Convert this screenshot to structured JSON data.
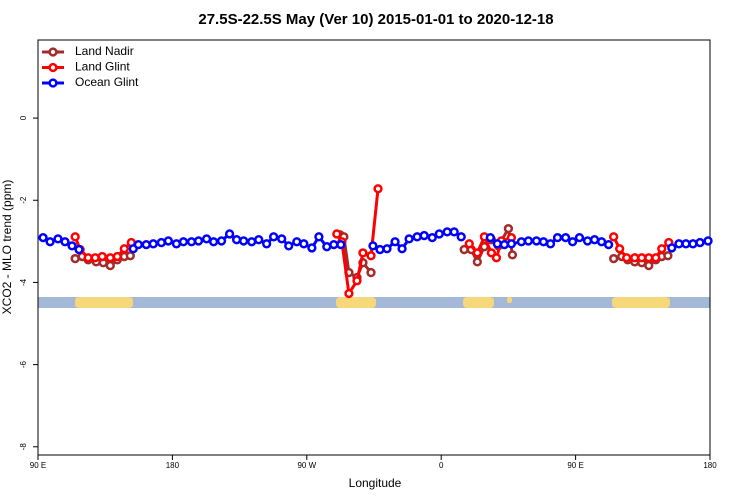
{
  "chart_data": {
    "type": "line",
    "title": "27.5S-22.5S May (Ver 10)   2015-01-01 to 2020-12-18",
    "x_label": "Longitude",
    "y_label": "XCO2 - MLO trend (ppm)",
    "xlim": [
      90,
      540
    ],
    "xticks": [
      {
        "value": 90,
        "label": "90 E"
      },
      {
        "value": 180,
        "label": "180"
      },
      {
        "value": 270,
        "label": "90 W"
      },
      {
        "value": 360,
        "label": "0"
      },
      {
        "value": 450,
        "label": "90 E"
      },
      {
        "value": 540,
        "label": "180"
      }
    ],
    "ylim": [
      -8.2,
      1.9
    ],
    "yticks": [
      0,
      -2,
      -4,
      -6,
      -8
    ],
    "legend": "top-left",
    "series": [
      {
        "name": "Land Nadir",
        "color": "#a52a2a",
        "x": [
          114.9,
          119.6,
          123.6,
          129.0,
          133.7,
          138.4,
          143.1,
          147.8,
          151.8,
          220,
          292.2,
          294.8,
          298.2,
          303.6,
          307.6,
          313.0,
          345,
          375.4,
          380.1,
          384.2,
          388.9,
          393.6,
          398.3,
          405.0,
          407.7,
          440,
          475.5,
          480.9,
          484.9,
          489.6,
          494.3,
          499.0,
          503.7,
          507.7,
          511.8
        ],
        "values": [
          -3.42,
          -3.37,
          -3.45,
          -3.5,
          -3.52,
          -3.59,
          -3.45,
          -3.37,
          -3.35,
          null,
          -2.84,
          -2.89,
          -3.76,
          -3.88,
          -3.52,
          -3.76,
          null,
          -3.2,
          -3.2,
          -3.5,
          -3.13,
          -2.96,
          -3.11,
          -2.69,
          -3.33,
          null,
          -3.42,
          -3.37,
          -3.45,
          -3.5,
          -3.52,
          -3.59,
          -3.45,
          -3.37,
          -3.35
        ]
      },
      {
        "name": "Land Glint",
        "color": "#ff0000",
        "x": [
          114.9,
          118.2,
          123.6,
          128.3,
          133.0,
          138.4,
          143.1,
          147.8,
          152.5,
          220,
          290.1,
          293.5,
          298.2,
          303.6,
          307.6,
          313.0,
          317.7,
          345,
          378.8,
          384.2,
          388.9,
          393.6,
          397.0,
          400.3,
          407.0,
          440,
          475.5,
          479.5,
          484.2,
          489.6,
          494.3,
          499.0,
          503.7,
          507.7,
          512.4
        ],
        "values": [
          -2.89,
          -3.2,
          -3.4,
          -3.4,
          -3.37,
          -3.4,
          -3.37,
          -3.18,
          -3.03,
          null,
          -2.82,
          -3.01,
          -4.27,
          -3.96,
          -3.28,
          -3.35,
          -1.72,
          null,
          -3.06,
          -3.28,
          -2.89,
          -3.28,
          -3.4,
          -2.99,
          -2.91,
          null,
          -2.89,
          -3.18,
          -3.4,
          -3.4,
          -3.4,
          -3.4,
          -3.4,
          -3.18,
          -3.03
        ]
      },
      {
        "name": "Ocean Glint",
        "color": "#0000ff",
        "x": [
          93.4,
          98.1,
          103.4,
          108.1,
          112.8,
          117.5,
          135,
          153.8,
          157.2,
          162.5,
          167.2,
          172.6,
          177.3,
          182.7,
          187.4,
          192.8,
          197.5,
          202.9,
          207.6,
          212.9,
          218.3,
          223.0,
          227.7,
          233.1,
          237.8,
          243.1,
          247.8,
          253.2,
          257.9,
          263.3,
          268.0,
          273.4,
          278.1,
          283.4,
          288.1,
          292.8,
          303,
          314.3,
          319.0,
          323.7,
          329.1,
          333.8,
          338.5,
          343.9,
          348.6,
          354.0,
          358.7,
          364.0,
          368.7,
          373.4,
          383,
          392.9,
          397.6,
          402.3,
          407.0,
          413.7,
          418.4,
          423.8,
          428.5,
          433.2,
          437.9,
          443.3,
          448.0,
          452.6,
          458.0,
          462.7,
          467.4,
          472.1,
          493,
          514.4,
          519.2,
          523.9,
          528.6,
          533.3,
          538.7
        ],
        "values": [
          -2.91,
          -3.01,
          -2.94,
          -3.01,
          -3.11,
          -3.2,
          null,
          -3.18,
          -3.08,
          -3.08,
          -3.06,
          -3.03,
          -2.99,
          -3.06,
          -3.01,
          -3.01,
          -2.99,
          -2.94,
          -3.01,
          -2.99,
          -2.82,
          -2.96,
          -2.99,
          -3.01,
          -2.96,
          -3.06,
          -2.89,
          -2.94,
          -3.11,
          -3.01,
          -3.06,
          -3.16,
          -2.89,
          -3.13,
          -3.08,
          -3.08,
          null,
          -3.11,
          -3.2,
          -3.18,
          -3.01,
          -3.18,
          -2.94,
          -2.89,
          -2.86,
          -2.91,
          -2.82,
          -2.77,
          -2.77,
          -2.89,
          null,
          -2.91,
          -3.06,
          -3.08,
          -3.06,
          -3.01,
          -2.99,
          -2.99,
          -3.01,
          -3.06,
          -2.91,
          -2.91,
          -3.01,
          -2.91,
          -2.99,
          -2.96,
          -3.01,
          -3.08,
          null,
          -3.16,
          -3.06,
          -3.06,
          -3.06,
          -3.03,
          -2.99
        ]
      }
    ]
  }
}
